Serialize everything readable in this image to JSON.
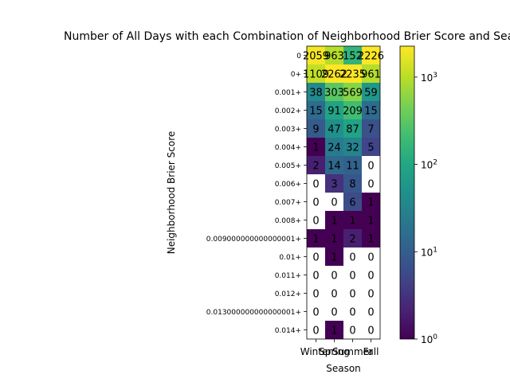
{
  "chart_data": {
    "type": "heatmap",
    "title": "Number of All Days with each Combination of Neighborhood Brier Score and Season",
    "xlabel": "Season",
    "ylabel": "Neighborhood Brier Score",
    "x_categories": [
      "Winter",
      "Spring",
      "Summer",
      "Fall"
    ],
    "y_categories": [
      "0",
      "0+",
      "0.001+",
      "0.002+",
      "0.003+",
      "0.004+",
      "0.005+",
      "0.006+",
      "0.007+",
      "0.008+",
      "0.009000000000000001+",
      "0.01+",
      "0.011+",
      "0.012+",
      "0.013000000000000001+",
      "0.014+"
    ],
    "values": [
      [
        2059,
        963,
        152,
        2226
      ],
      [
        1109,
        2262,
        2235,
        961
      ],
      [
        38,
        303,
        569,
        59
      ],
      [
        15,
        91,
        209,
        15
      ],
      [
        9,
        47,
        87,
        7
      ],
      [
        1,
        24,
        32,
        5
      ],
      [
        2,
        14,
        11,
        0
      ],
      [
        0,
        3,
        8,
        0
      ],
      [
        0,
        0,
        6,
        1
      ],
      [
        0,
        1,
        1,
        1
      ],
      [
        1,
        1,
        2,
        1
      ],
      [
        0,
        1,
        0,
        0
      ],
      [
        0,
        0,
        0,
        0
      ],
      [
        0,
        0,
        0,
        0
      ],
      [
        0,
        0,
        0,
        0
      ],
      [
        0,
        1,
        0,
        0
      ]
    ],
    "color_scale": "log",
    "colormap": "viridis",
    "color_range": [
      1,
      2262
    ],
    "colorbar_ticks": [
      "10^0",
      "10^1",
      "10^2",
      "10^3"
    ],
    "zero_color": "#ffffff"
  }
}
